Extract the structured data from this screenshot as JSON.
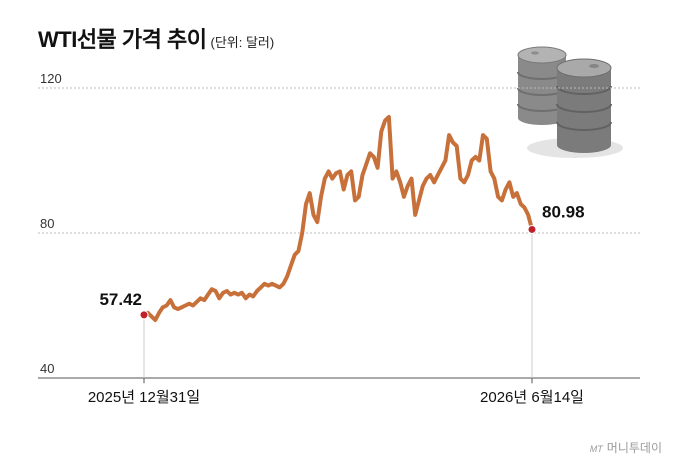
{
  "title": "WTI선물 가격 추이",
  "unit_note": "(단위: 달러)",
  "credit": {
    "mark": "MT",
    "text": "머니투데이"
  },
  "colors": {
    "line": "#c8703a",
    "dot": "#c0202a",
    "grid": "#bbbbbb",
    "axis": "#555555"
  },
  "icon": "oil-barrels-icon",
  "chart_data": {
    "type": "line",
    "title": "WTI선물 가격 추이",
    "unit": "(단위: 달러)",
    "ylim": [
      40,
      120
    ],
    "yticks": [
      40,
      80,
      120
    ],
    "grid": true,
    "x_labels": [
      {
        "text": "2025년 12월31일",
        "index": 0
      },
      {
        "text": "2026년 6월14일",
        "index": 103
      }
    ],
    "annotations": [
      {
        "text": "57.42",
        "index": 0,
        "value": 57.42
      },
      {
        "text": "80.98",
        "index": 103,
        "value": 80.98
      }
    ],
    "series": [
      {
        "values": [
          57.42,
          58.0,
          57.0,
          56.0,
          58.0,
          59.5,
          60.0,
          61.5,
          59.5,
          59.0,
          59.5,
          60.0,
          60.5,
          60.0,
          61.0,
          62.0,
          61.5,
          63.0,
          64.5,
          64.0,
          62.0,
          63.5,
          64.0,
          63.0,
          63.5,
          63.0,
          63.5,
          62.0,
          63.0,
          62.5,
          64.0,
          65.0,
          66.0,
          65.5,
          66.0,
          65.5,
          65.0,
          66.0,
          68.0,
          71.0,
          74.0,
          75.0,
          80.0,
          88.0,
          91.0,
          85.0,
          83.0,
          90.0,
          95.0,
          97.0,
          95.0,
          96.5,
          97.0,
          92.0,
          96.0,
          97.0,
          89.0,
          90.0,
          96.0,
          99.0,
          102.0,
          101.0,
          98.0,
          108.0,
          111.0,
          112.0,
          95.0,
          97.0,
          94.0,
          90.0,
          93.0,
          95.0,
          85.0,
          89.0,
          93.0,
          95.0,
          96.0,
          94.0,
          96.0,
          98.0,
          100.0,
          107.0,
          105.0,
          104.0,
          95.0,
          94.0,
          96.0,
          100.0,
          101.0,
          100.0,
          107.0,
          106.0,
          97.0,
          95.0,
          90.0,
          89.0,
          92.0,
          94.0,
          90.0,
          91.0,
          88.0,
          87.0,
          85.0,
          80.98
        ]
      }
    ]
  }
}
